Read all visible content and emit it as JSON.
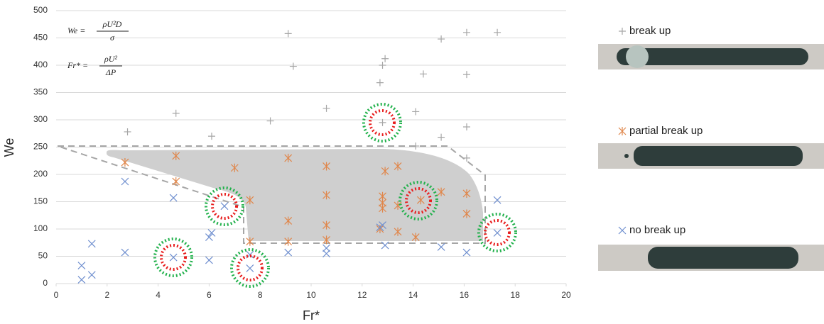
{
  "chart_data": {
    "type": "scatter",
    "x_label": "Fr*",
    "y_label": "We",
    "annotations": [
      "We =",
      "ρU²D",
      "σ",
      "Fr* =",
      "ρU²",
      "ΔP"
    ],
    "xlim": [
      0,
      20
    ],
    "xticks": [
      0,
      2,
      4,
      6,
      8,
      10,
      12,
      14,
      16,
      18,
      20
    ],
    "ylim": [
      0,
      500
    ],
    "yticks": [
      0,
      50,
      100,
      150,
      200,
      250,
      300,
      350,
      400,
      450,
      500
    ],
    "grid": true,
    "series": [
      {
        "name": "break up",
        "color": "#a6a6a6",
        "marker": "plus",
        "x": [
          2.8,
          4.7,
          6.1,
          8.4,
          9.1,
          9.3,
          10.6,
          12.7,
          12.8,
          12.9,
          12.8,
          14.1,
          14.4,
          14.1,
          15.1,
          15.1,
          16.1,
          16.1,
          16.1,
          16.1,
          17.3
        ],
        "values": [
          278,
          312,
          270,
          298,
          458,
          398,
          321,
          368,
          400,
          412,
          295,
          315,
          384,
          252,
          448,
          268,
          460,
          383,
          287,
          230,
          460
        ]
      },
      {
        "name": "partial break up",
        "color": "#e0864a",
        "marker": "star",
        "x": [
          2.7,
          4.7,
          4.7,
          7.0,
          7.6,
          7.6,
          9.1,
          9.1,
          9.1,
          10.6,
          10.6,
          10.6,
          10.6,
          12.7,
          12.8,
          12.8,
          12.8,
          12.9,
          13.4,
          13.4,
          13.4,
          14.1,
          14.3,
          15.1,
          16.1,
          16.1
        ],
        "values": [
          222,
          234,
          187,
          212,
          153,
          77,
          230,
          115,
          77,
          215,
          162,
          107,
          80,
          100,
          160,
          148,
          138,
          206,
          215,
          143,
          95,
          85,
          153,
          168,
          165,
          128
        ]
      },
      {
        "name": "no break up",
        "color": "#6f8fcf",
        "marker": "x",
        "x": [
          1.0,
          1.0,
          1.4,
          1.4,
          2.7,
          2.7,
          4.6,
          4.6,
          6.0,
          6.1,
          6.0,
          6.6,
          7.6,
          7.6,
          9.1,
          10.6,
          10.6,
          12.8,
          12.7,
          12.9,
          15.1,
          16.1,
          17.3,
          17.3
        ],
        "values": [
          33,
          7,
          73,
          16,
          187,
          57,
          157,
          48,
          85,
          93,
          43,
          142,
          53,
          28,
          57,
          55,
          65,
          107,
          103,
          70,
          67,
          57,
          153,
          93
        ]
      }
    ]
  }
}
